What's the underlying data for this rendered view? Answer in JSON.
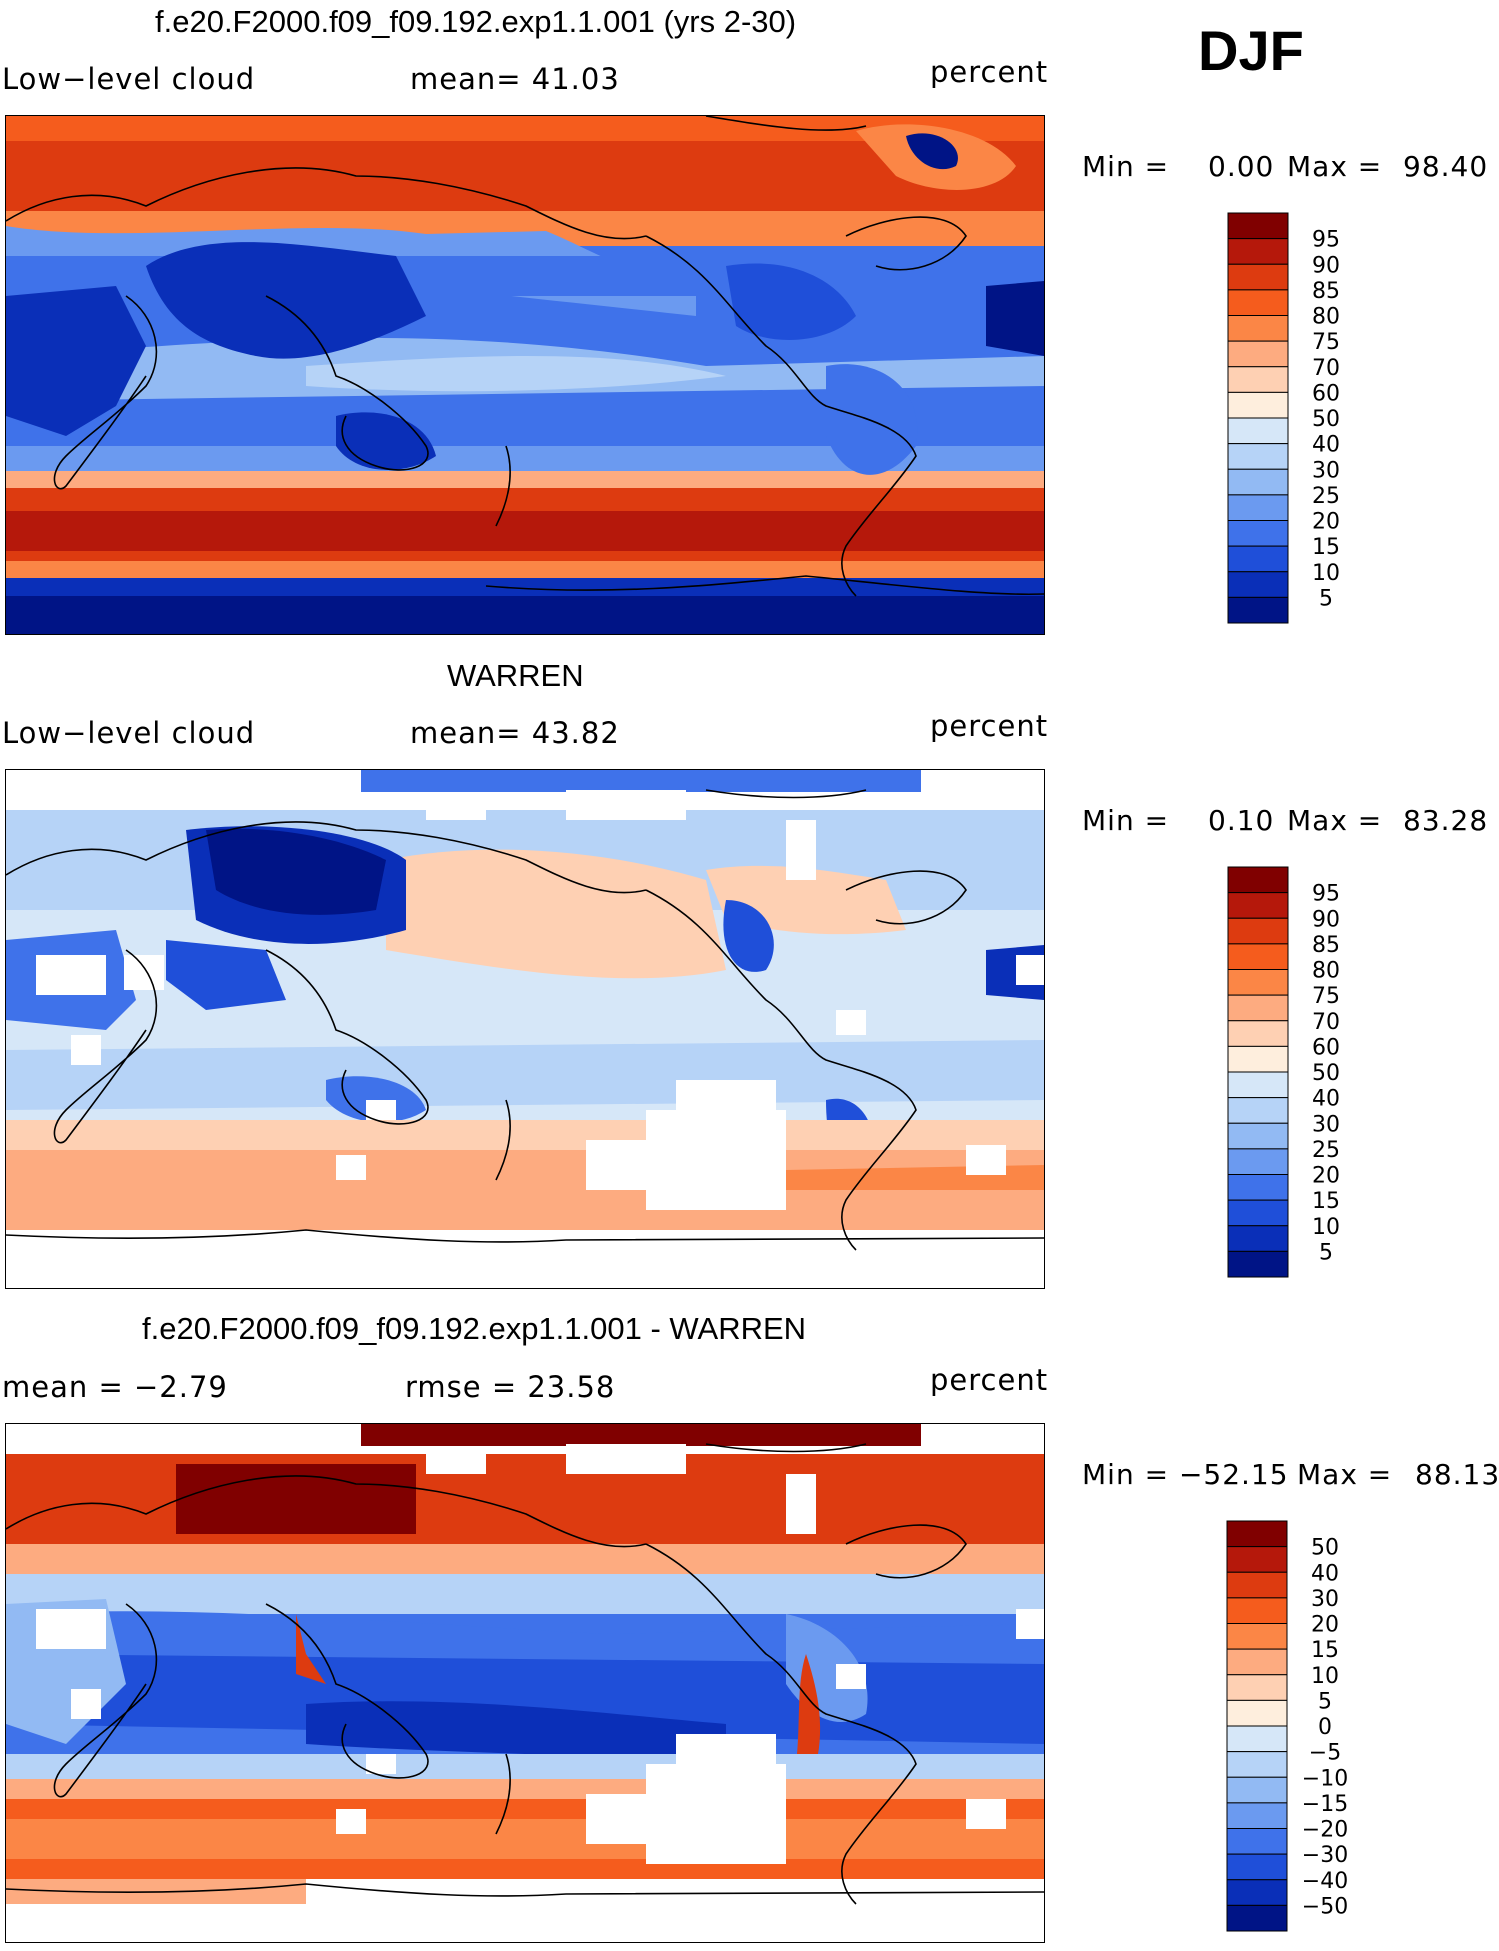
{
  "season": "DJF",
  "panels": [
    {
      "title": "f.e20.F2000.f09_f09.192.exp1.1.001 (yrs 2-30)",
      "variable": "Low−level cloud",
      "stat_text": "mean=   41.03",
      "stat2_text": "",
      "units": "percent",
      "min_text": "Min =",
      "min_value": "0.00",
      "max_text": "Max =",
      "max_value": "98.40",
      "colorbar": {
        "labels": [
          "95",
          "90",
          "85",
          "80",
          "75",
          "70",
          "60",
          "50",
          "40",
          "30",
          "25",
          "20",
          "15",
          "10",
          "5"
        ],
        "colors": [
          "#800000",
          "#b5180b",
          "#dd3b10",
          "#f55c1d",
          "#fb8646",
          "#fdab80",
          "#fed0b3",
          "#feeedd",
          "#d6e7f8",
          "#b6d3f7",
          "#92baf3",
          "#6b9af0",
          "#3f72ea",
          "#1f4fd9",
          "#0a2fb8",
          "#001486"
        ]
      }
    },
    {
      "title": "WARREN",
      "variable": "Low−level cloud",
      "stat_text": "mean=   43.82",
      "stat2_text": "",
      "units": "percent",
      "min_text": "Min =",
      "min_value": "0.10",
      "max_text": "Max =",
      "max_value": "83.28",
      "colorbar": {
        "labels": [
          "95",
          "90",
          "85",
          "80",
          "75",
          "70",
          "60",
          "50",
          "40",
          "30",
          "25",
          "20",
          "15",
          "10",
          "5"
        ],
        "colors": [
          "#800000",
          "#b5180b",
          "#dd3b10",
          "#f55c1d",
          "#fb8646",
          "#fdab80",
          "#fed0b3",
          "#feeedd",
          "#d6e7f8",
          "#b6d3f7",
          "#92baf3",
          "#6b9af0",
          "#3f72ea",
          "#1f4fd9",
          "#0a2fb8",
          "#001486"
        ]
      }
    },
    {
      "title": "f.e20.F2000.f09_f09.192.exp1.1.001 - WARREN",
      "variable": "mean =   −2.79",
      "stat_text": "rmse =   23.58",
      "stat2_text": "",
      "units": "percent",
      "min_text": "Min = −52.15",
      "min_value": "",
      "max_text": "Max =",
      "max_value": "88.13",
      "colorbar": {
        "labels": [
          "50",
          "40",
          "30",
          "20",
          "15",
          "10",
          "5",
          "0",
          "−5",
          "−10",
          "−15",
          "−20",
          "−30",
          "−40",
          "−50"
        ],
        "colors": [
          "#800000",
          "#b5180b",
          "#dd3b10",
          "#f55c1d",
          "#fb8646",
          "#fdab80",
          "#fed0b3",
          "#feeedd",
          "#d6e7f8",
          "#b6d3f7",
          "#92baf3",
          "#6b9af0",
          "#3f72ea",
          "#1f4fd9",
          "#0a2fb8",
          "#001486"
        ]
      }
    }
  ],
  "colors": {
    "ocean_blue": "#3f72ea",
    "deep_blue": "#0a2fb8",
    "pale_blue": "#b6d3f7",
    "light_blue": "#d6e7f8",
    "peach": "#fed0b3",
    "salmon": "#fb8646",
    "red_orange": "#dd3b10",
    "dark_red": "#800000",
    "coast": "#000000",
    "missing": "#ffffff"
  }
}
